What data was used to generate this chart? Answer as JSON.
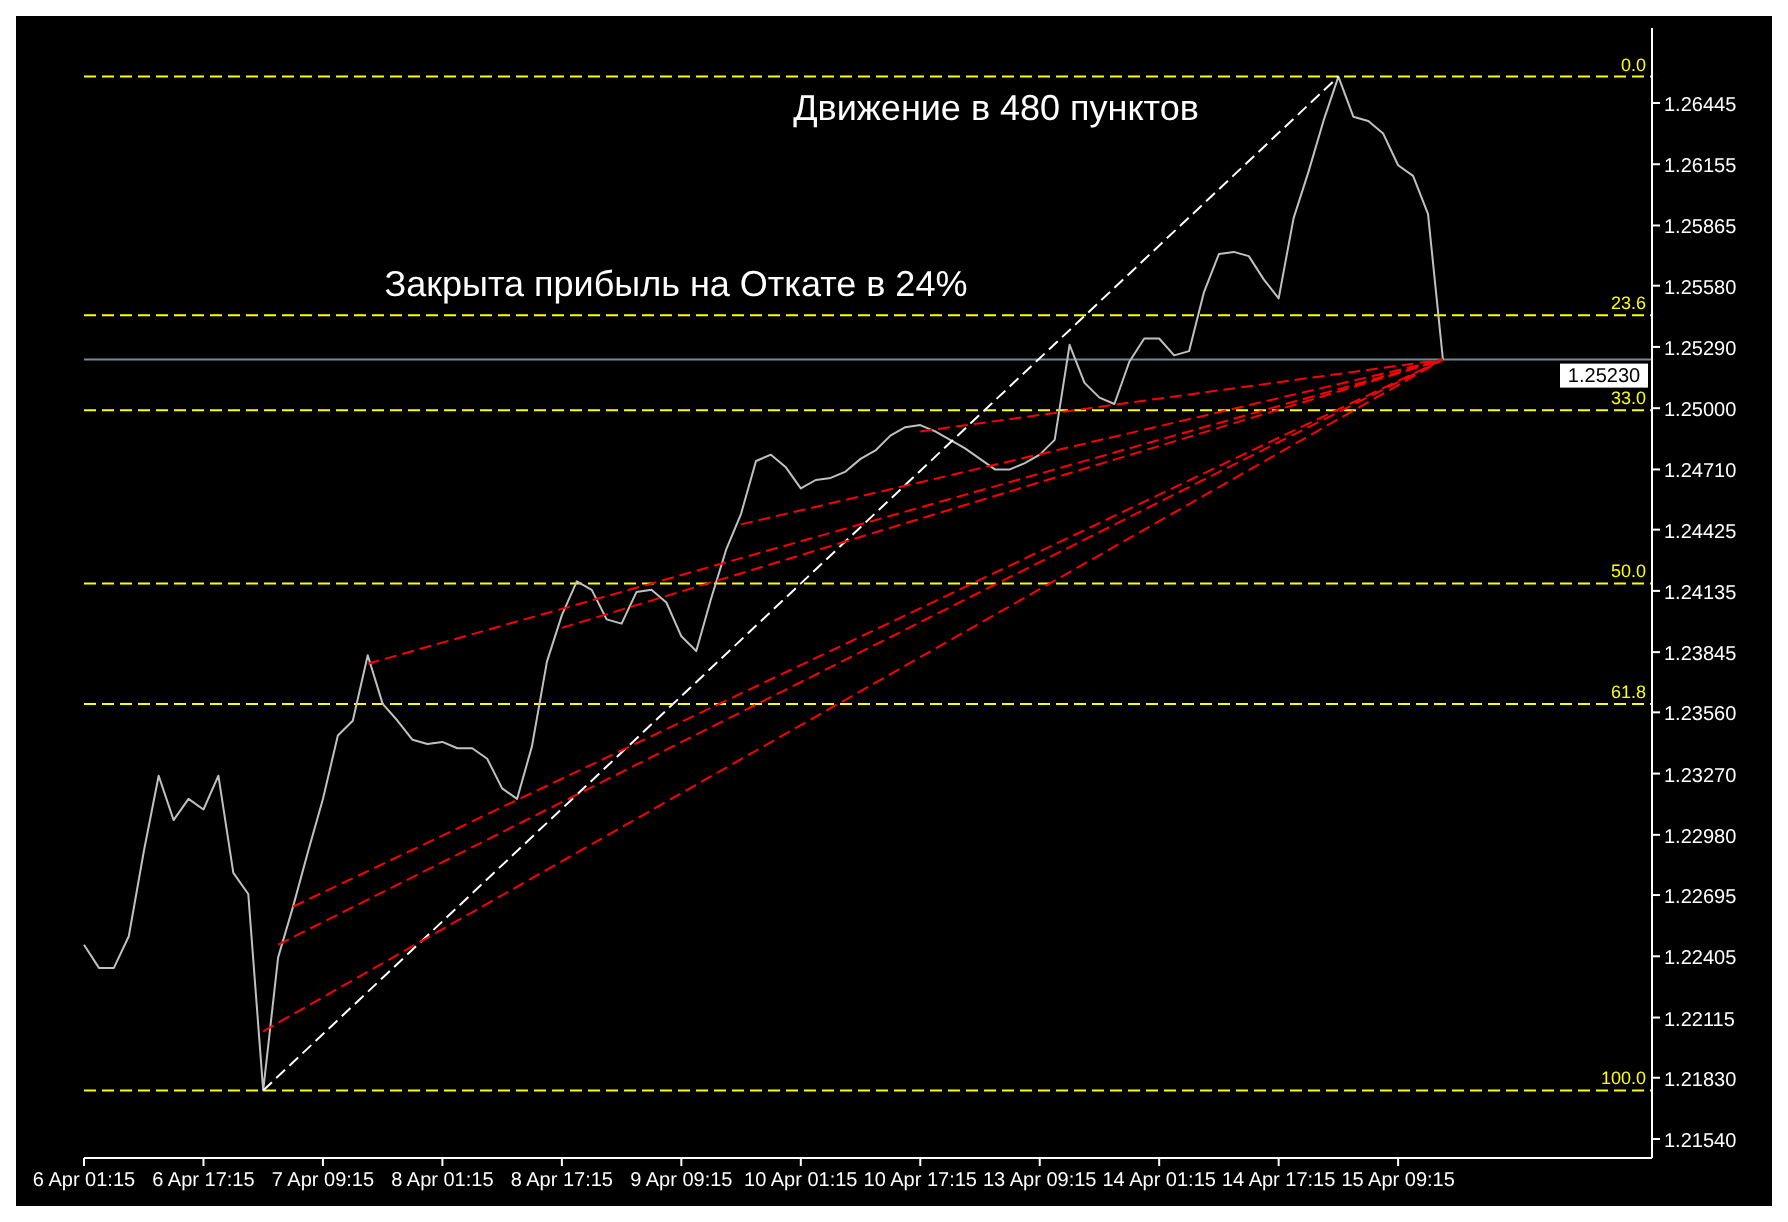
{
  "chart_data": {
    "type": "line",
    "annotations": [
      "Движение в 480 пунктов",
      "Закрыта прибыль на Откате в 24%",
      {
        "text": "0.0",
        "y": 1.2657
      },
      {
        "text": "23.6",
        "y": 1.2544
      },
      {
        "text": "33.0",
        "y": 1.2499
      },
      {
        "text": "50.0",
        "y": 1.2417
      },
      {
        "text": "61.8",
        "y": 1.236
      },
      {
        "text": "100.0",
        "y": 1.2177
      }
    ],
    "categories": [
      "6 Apr 01:15",
      null,
      null,
      null,
      null,
      null,
      null,
      null,
      "6 Apr 17:15",
      null,
      null,
      null,
      null,
      null,
      null,
      null,
      "7 Apr 09:15",
      null,
      null,
      null,
      null,
      null,
      null,
      null,
      "8 Apr 01:15",
      null,
      null,
      null,
      null,
      null,
      null,
      null,
      "8 Apr 17:15",
      null,
      null,
      null,
      null,
      null,
      null,
      null,
      "9 Apr 09:15",
      null,
      null,
      null,
      null,
      null,
      null,
      null,
      "10 Apr 01:15",
      null,
      null,
      null,
      null,
      null,
      null,
      null,
      "10 Apr 17:15",
      null,
      null,
      null,
      null,
      null,
      null,
      null,
      "13 Apr 09:15",
      null,
      null,
      null,
      null,
      null,
      null,
      null,
      "14 Apr 01:15",
      null,
      null,
      null,
      null,
      null,
      null,
      null,
      "14 Apr 17:15",
      null,
      null,
      null,
      null,
      null,
      null,
      null,
      "15 Apr 09:15",
      null,
      null,
      null,
      null,
      null,
      null,
      null,
      null,
      null,
      null,
      null,
      null,
      null,
      null,
      null,
      null,
      null
    ],
    "ylim": [
      1.2145,
      1.268
    ],
    "yticks": [
      {
        "value": 1.26445,
        "label": "1.26445"
      },
      {
        "value": 1.26155,
        "label": "1.26155"
      },
      {
        "value": 1.25865,
        "label": "1.25865"
      },
      {
        "value": 1.2558,
        "label": "1.25580"
      },
      {
        "value": 1.2529,
        "label": "1.25290"
      },
      {
        "value": 1.25,
        "label": "1.25000"
      },
      {
        "value": 1.2471,
        "label": "1.24710"
      },
      {
        "value": 1.24425,
        "label": "1.24425"
      },
      {
        "value": 1.24135,
        "label": "1.24135"
      },
      {
        "value": 1.23845,
        "label": "1.23845"
      },
      {
        "value": 1.2356,
        "label": "1.23560"
      },
      {
        "value": 1.2327,
        "label": "1.23270"
      },
      {
        "value": 1.2298,
        "label": "1.22980"
      },
      {
        "value": 1.22695,
        "label": "1.22695"
      },
      {
        "value": 1.22405,
        "label": "1.22405"
      },
      {
        "value": 1.22115,
        "label": "1.22115"
      },
      {
        "value": 1.2183,
        "label": "1.21830"
      },
      {
        "value": 1.2154,
        "label": "1.21540"
      }
    ],
    "ref_lines": [
      {
        "axis": "y",
        "value": 1.2657,
        "color": "#ffff00",
        "line_style": "dashed"
      },
      {
        "axis": "y",
        "value": 1.2544,
        "color": "#ffff00",
        "line_style": "dashed"
      },
      {
        "axis": "y",
        "value": 1.2499,
        "color": "#ffff00",
        "line_style": "dashed"
      },
      {
        "axis": "y",
        "value": 1.2417,
        "color": "#ffff00",
        "line_style": "dashed"
      },
      {
        "axis": "y",
        "value": 1.236,
        "color": "#ffff00",
        "line_style": "dashed"
      },
      {
        "axis": "y",
        "value": 1.2177,
        "color": "#ffff00",
        "line_style": "dashed"
      },
      {
        "axis": "y",
        "value": 1.2523,
        "label": "1.25230",
        "color": "#778899",
        "line_style": "solid"
      }
    ],
    "series": [
      {
        "color": "#c0c0c0",
        "line_style": "solid",
        "values": [
          1.2246,
          1.2235,
          1.2235,
          1.225,
          1.229,
          1.2326,
          1.2305,
          1.2315,
          1.231,
          1.2326,
          1.228,
          1.227,
          1.2177,
          1.224,
          1.2264,
          1.229,
          1.2315,
          1.2345,
          1.2352,
          1.2383,
          1.236,
          1.2352,
          1.2343,
          1.2341,
          1.2342,
          1.2339,
          1.2339,
          1.2334,
          1.232,
          1.2315,
          1.234,
          1.238,
          1.2402,
          1.2418,
          1.2414,
          1.24,
          1.2398,
          1.2413,
          1.2414,
          1.2408,
          1.2392,
          1.2385,
          1.241,
          1.2433,
          1.245,
          1.2475,
          1.2478,
          1.2472,
          1.2462,
          1.2466,
          1.2467,
          1.247,
          1.2476,
          1.248,
          1.2487,
          1.2491,
          1.2492,
          1.2489,
          1.2485,
          1.2481,
          1.2476,
          1.2471,
          1.2471,
          1.2474,
          1.2478,
          1.2485,
          1.253,
          1.2512,
          1.2505,
          1.2502,
          1.2522,
          1.2533,
          1.2533,
          1.2525,
          1.2527,
          1.2555,
          1.2573,
          1.2574,
          1.2572,
          1.2561,
          1.2552,
          1.259,
          1.2612,
          1.2636,
          1.2657,
          1.2638,
          1.2636,
          1.263,
          1.2615,
          1.261,
          1.2592,
          1.2523,
          null,
          null,
          null,
          null,
          null,
          null,
          null,
          null,
          null,
          null,
          null,
          null,
          null,
          null
        ]
      },
      {
        "color": "#ffffff",
        "line_style": "dashed",
        "values": [
          null,
          null,
          null,
          null,
          null,
          null,
          null,
          null,
          null,
          null,
          null,
          null,
          1.2177,
          null,
          null,
          null,
          null,
          null,
          null,
          null,
          null,
          null,
          null,
          null,
          null,
          null,
          null,
          null,
          null,
          null,
          null,
          null,
          null,
          null,
          null,
          null,
          null,
          null,
          null,
          null,
          null,
          null,
          null,
          null,
          null,
          null,
          null,
          null,
          null,
          null,
          null,
          null,
          null,
          null,
          null,
          null,
          null,
          null,
          null,
          null,
          null,
          null,
          null,
          null,
          null,
          null,
          null,
          null,
          null,
          null,
          null,
          null,
          null,
          null,
          null,
          null,
          null,
          null,
          null,
          null,
          null,
          null,
          null,
          null,
          1.2657,
          null,
          null,
          null,
          null,
          null,
          null,
          null,
          null,
          null,
          null,
          null,
          null,
          null,
          null,
          null,
          null,
          null,
          null,
          null,
          null,
          null
        ]
      },
      {
        "color": "#ff0000",
        "line_style": "dashed",
        "values": [
          null,
          null,
          null,
          null,
          null,
          null,
          null,
          null,
          null,
          null,
          null,
          null,
          1.2205,
          null,
          null,
          null,
          null,
          null,
          null,
          null,
          null,
          null,
          null,
          null,
          null,
          null,
          null,
          null,
          null,
          null,
          null,
          null,
          null,
          null,
          null,
          null,
          null,
          null,
          null,
          null,
          null,
          null,
          null,
          null,
          null,
          null,
          null,
          null,
          null,
          null,
          null,
          null,
          null,
          null,
          null,
          null,
          null,
          null,
          null,
          null,
          null,
          null,
          null,
          null,
          null,
          null,
          null,
          null,
          null,
          null,
          null,
          null,
          null,
          null,
          null,
          null,
          null,
          null,
          null,
          null,
          null,
          null,
          null,
          null,
          null,
          null,
          null,
          null,
          null,
          null,
          null,
          1.2523,
          null,
          null,
          null,
          null,
          null,
          null,
          null,
          null,
          null,
          null,
          null,
          null,
          null,
          null
        ]
      },
      {
        "color": "#ff0000",
        "line_style": "dashed",
        "values": [
          null,
          null,
          null,
          null,
          null,
          null,
          null,
          null,
          null,
          null,
          null,
          null,
          null,
          1.2246,
          null,
          null,
          null,
          null,
          null,
          null,
          null,
          null,
          null,
          null,
          null,
          null,
          null,
          null,
          null,
          null,
          null,
          null,
          null,
          null,
          null,
          null,
          null,
          null,
          null,
          null,
          null,
          null,
          null,
          null,
          null,
          null,
          null,
          null,
          null,
          null,
          null,
          null,
          null,
          null,
          null,
          null,
          null,
          null,
          null,
          null,
          null,
          null,
          null,
          null,
          null,
          null,
          null,
          null,
          null,
          null,
          null,
          null,
          null,
          null,
          null,
          null,
          null,
          null,
          null,
          null,
          null,
          null,
          null,
          null,
          null,
          null,
          null,
          null,
          null,
          null,
          null,
          1.2523,
          null,
          null,
          null,
          null,
          null,
          null,
          null,
          null,
          null,
          null,
          null,
          null,
          null,
          null
        ]
      },
      {
        "color": "#ff0000",
        "line_style": "dashed",
        "values": [
          null,
          null,
          null,
          null,
          null,
          null,
          null,
          null,
          null,
          null,
          null,
          null,
          null,
          null,
          1.2264,
          null,
          null,
          null,
          null,
          null,
          null,
          null,
          null,
          null,
          null,
          null,
          null,
          null,
          null,
          null,
          null,
          null,
          null,
          null,
          null,
          null,
          null,
          null,
          null,
          null,
          null,
          null,
          null,
          null,
          null,
          null,
          null,
          null,
          null,
          null,
          null,
          null,
          null,
          null,
          null,
          null,
          null,
          null,
          null,
          null,
          null,
          null,
          null,
          null,
          null,
          null,
          null,
          null,
          null,
          null,
          null,
          null,
          null,
          null,
          null,
          null,
          null,
          null,
          null,
          null,
          null,
          null,
          null,
          null,
          null,
          null,
          null,
          null,
          null,
          null,
          null,
          1.2523,
          null,
          null,
          null,
          null,
          null,
          null,
          null,
          null,
          null,
          null,
          null,
          null,
          null,
          null
        ]
      },
      {
        "color": "#ff0000",
        "line_style": "dashed",
        "values": [
          null,
          null,
          null,
          null,
          null,
          null,
          null,
          null,
          null,
          null,
          null,
          null,
          null,
          null,
          null,
          null,
          null,
          null,
          null,
          1.2379,
          null,
          null,
          null,
          null,
          null,
          null,
          null,
          null,
          null,
          null,
          null,
          null,
          null,
          null,
          null,
          null,
          null,
          null,
          null,
          null,
          null,
          null,
          null,
          null,
          null,
          null,
          null,
          null,
          null,
          null,
          null,
          null,
          null,
          null,
          null,
          null,
          null,
          null,
          null,
          null,
          null,
          null,
          null,
          null,
          null,
          null,
          null,
          null,
          null,
          null,
          null,
          null,
          null,
          null,
          null,
          null,
          null,
          null,
          null,
          null,
          null,
          null,
          null,
          null,
          null,
          null,
          null,
          null,
          null,
          null,
          null,
          1.2523,
          null,
          null,
          null,
          null,
          null,
          null,
          null,
          null,
          null,
          null,
          null,
          null,
          null,
          null
        ]
      },
      {
        "color": "#ff0000",
        "line_style": "dashed",
        "values": [
          null,
          null,
          null,
          null,
          null,
          null,
          null,
          null,
          null,
          null,
          null,
          null,
          null,
          null,
          null,
          null,
          null,
          null,
          null,
          null,
          null,
          null,
          null,
          null,
          null,
          null,
          null,
          null,
          null,
          null,
          null,
          null,
          1.2396,
          null,
          null,
          null,
          null,
          null,
          null,
          null,
          null,
          null,
          null,
          null,
          null,
          null,
          null,
          null,
          null,
          null,
          null,
          null,
          null,
          null,
          null,
          null,
          null,
          null,
          null,
          null,
          null,
          null,
          null,
          null,
          null,
          null,
          null,
          null,
          null,
          null,
          null,
          null,
          null,
          null,
          null,
          null,
          null,
          null,
          null,
          null,
          null,
          null,
          null,
          null,
          null,
          null,
          null,
          null,
          null,
          null,
          null,
          1.2523,
          null,
          null,
          null,
          null,
          null,
          null,
          null,
          null,
          null,
          null,
          null,
          null,
          null,
          null
        ]
      },
      {
        "color": "#ff0000",
        "line_style": "dashed",
        "values": [
          null,
          null,
          null,
          null,
          null,
          null,
          null,
          null,
          null,
          null,
          null,
          null,
          null,
          null,
          null,
          null,
          null,
          null,
          null,
          null,
          null,
          null,
          null,
          null,
          null,
          null,
          null,
          null,
          null,
          null,
          null,
          null,
          null,
          null,
          null,
          null,
          null,
          null,
          null,
          null,
          null,
          null,
          null,
          null,
          1.2445,
          null,
          null,
          null,
          null,
          null,
          null,
          null,
          null,
          null,
          null,
          null,
          null,
          null,
          null,
          null,
          null,
          null,
          null,
          null,
          null,
          null,
          null,
          null,
          null,
          null,
          null,
          null,
          null,
          null,
          null,
          null,
          null,
          null,
          null,
          null,
          null,
          null,
          null,
          null,
          null,
          null,
          null,
          null,
          null,
          null,
          null,
          1.2523,
          null,
          null,
          null,
          null,
          null,
          null,
          null,
          null,
          null,
          null,
          null,
          null,
          null,
          null
        ]
      },
      {
        "color": "#ff0000",
        "line_style": "dashed",
        "values": [
          null,
          null,
          null,
          null,
          null,
          null,
          null,
          null,
          null,
          null,
          null,
          null,
          null,
          null,
          null,
          null,
          null,
          null,
          null,
          null,
          null,
          null,
          null,
          null,
          null,
          null,
          null,
          null,
          null,
          null,
          null,
          null,
          null,
          null,
          null,
          null,
          null,
          null,
          null,
          null,
          null,
          null,
          null,
          null,
          null,
          null,
          null,
          null,
          null,
          null,
          null,
          null,
          null,
          null,
          null,
          null,
          1.2489,
          null,
          null,
          null,
          null,
          null,
          null,
          null,
          null,
          null,
          null,
          null,
          null,
          null,
          null,
          null,
          null,
          null,
          null,
          null,
          null,
          null,
          null,
          null,
          null,
          null,
          null,
          null,
          null,
          null,
          null,
          null,
          null,
          null,
          null,
          1.2523,
          null,
          null,
          null,
          null,
          null,
          null,
          null,
          null,
          null,
          null,
          null,
          null,
          null,
          null
        ]
      }
    ]
  }
}
